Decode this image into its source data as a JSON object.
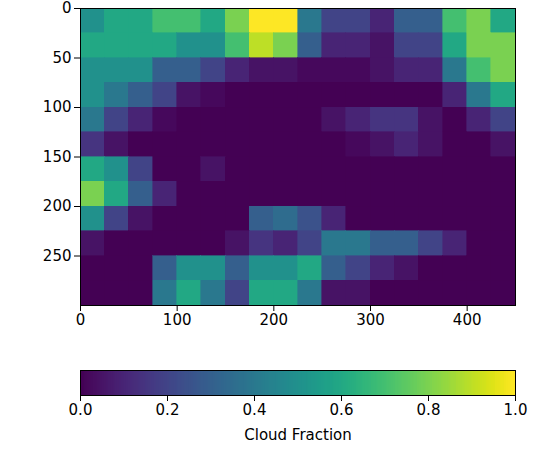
{
  "chart_data": {
    "type": "heatmap",
    "color": "viridis",
    "xlim": [
      0,
      450
    ],
    "ylim": [
      300,
      0
    ],
    "xticks": [
      0,
      100,
      200,
      300,
      400
    ],
    "yticks": [
      0,
      50,
      100,
      150,
      200,
      250
    ],
    "xbins": [
      0,
      25,
      50,
      75,
      100,
      125,
      150,
      175,
      200,
      225,
      250,
      275,
      300,
      325,
      350,
      375,
      400,
      425,
      450
    ],
    "ybins": [
      0,
      25,
      50,
      75,
      100,
      125,
      150,
      175,
      200,
      225,
      250,
      275,
      300
    ],
    "values": [
      [
        0.5,
        0.6,
        0.6,
        0.7,
        0.7,
        0.6,
        0.8,
        1.0,
        1.0,
        0.4,
        0.2,
        0.2,
        0.1,
        0.3,
        0.3,
        0.7,
        0.8,
        0.6
      ],
      [
        0.6,
        0.6,
        0.6,
        0.6,
        0.5,
        0.5,
        0.7,
        0.9,
        0.8,
        0.3,
        0.1,
        0.1,
        0.05,
        0.2,
        0.2,
        0.6,
        0.8,
        0.8
      ],
      [
        0.5,
        0.5,
        0.5,
        0.3,
        0.3,
        0.2,
        0.1,
        0.05,
        0.05,
        0.02,
        0.02,
        0.02,
        0.05,
        0.1,
        0.1,
        0.4,
        0.7,
        0.8
      ],
      [
        0.5,
        0.4,
        0.3,
        0.2,
        0.05,
        0.02,
        0,
        0,
        0,
        0,
        0,
        0,
        0,
        0,
        0,
        0.1,
        0.4,
        0.6
      ],
      [
        0.4,
        0.2,
        0.1,
        0.02,
        0,
        0,
        0,
        0,
        0,
        0,
        0.05,
        0.1,
        0.15,
        0.15,
        0.05,
        0,
        0.1,
        0.2
      ],
      [
        0.15,
        0.05,
        0,
        0,
        0,
        0,
        0,
        0,
        0,
        0,
        0,
        0.02,
        0.05,
        0.1,
        0.05,
        0,
        0,
        0.05
      ],
      [
        0.6,
        0.5,
        0.2,
        0,
        0,
        0.05,
        0,
        0,
        0,
        0,
        0,
        0,
        0,
        0,
        0,
        0,
        0,
        0
      ],
      [
        0.8,
        0.6,
        0.3,
        0.1,
        0,
        0,
        0,
        0,
        0,
        0,
        0,
        0,
        0,
        0,
        0,
        0,
        0,
        0
      ],
      [
        0.5,
        0.2,
        0.05,
        0,
        0,
        0,
        0,
        0.3,
        0.35,
        0.25,
        0.1,
        0,
        0,
        0,
        0,
        0,
        0,
        0
      ],
      [
        0.05,
        0,
        0,
        0,
        0,
        0,
        0.05,
        0.15,
        0.1,
        0.2,
        0.4,
        0.4,
        0.3,
        0.3,
        0.2,
        0.1,
        0,
        0
      ],
      [
        0,
        0,
        0,
        0.3,
        0.5,
        0.5,
        0.3,
        0.5,
        0.5,
        0.6,
        0.3,
        0.2,
        0.1,
        0.05,
        0,
        0,
        0,
        0
      ],
      [
        0,
        0,
        0,
        0.4,
        0.6,
        0.4,
        0.2,
        0.6,
        0.6,
        0.4,
        0.05,
        0.05,
        0,
        0,
        0,
        0,
        0,
        0
      ]
    ],
    "colorbar": {
      "label": "Cloud Fraction",
      "range": [
        0,
        1
      ],
      "ticks": [
        {
          "value": 0,
          "label": "0.0"
        },
        {
          "value": 0.2,
          "label": "0.2"
        },
        {
          "value": 0.4,
          "label": "0.4"
        },
        {
          "value": 0.6,
          "label": "0.6"
        },
        {
          "value": 0.8,
          "label": "0.8"
        },
        {
          "value": 1,
          "label": "1.0"
        }
      ]
    }
  }
}
